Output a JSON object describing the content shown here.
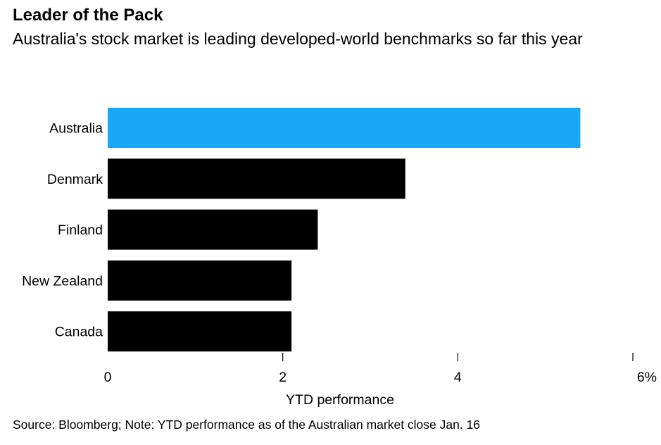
{
  "chart_data": {
    "type": "bar",
    "orientation": "horizontal",
    "title": "Leader of the Pack",
    "subtitle": "Australia's stock market is leading developed-world benchmarks so far this year",
    "categories": [
      "Australia",
      "Denmark",
      "Finland",
      "New Zealand",
      "Canada"
    ],
    "values": [
      5.4,
      3.4,
      2.4,
      2.1,
      2.1
    ],
    "highlight_index": 0,
    "colors": {
      "highlight": "#1AA7F7",
      "default": "#000000"
    },
    "xlabel": "YTD performance",
    "ylabel": "",
    "xlim": [
      0,
      6
    ],
    "ticks": [
      {
        "value": 0,
        "label": "0"
      },
      {
        "value": 2,
        "label": "2"
      },
      {
        "value": 4,
        "label": "4"
      },
      {
        "value": 6,
        "label": "6%"
      }
    ],
    "grid": false,
    "source": "Source: Bloomberg; Note: YTD performance as of the Australian market close Jan. 16"
  }
}
